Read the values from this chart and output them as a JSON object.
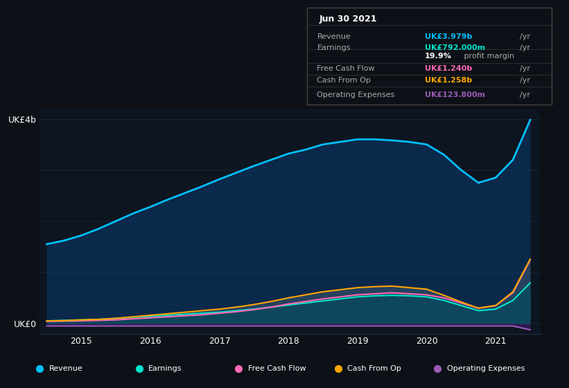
{
  "background_color": "#0d1117",
  "plot_bg_color": "#0d1520",
  "title": "",
  "years": [
    2014.5,
    2014.75,
    2015.0,
    2015.25,
    2015.5,
    2015.75,
    2016.0,
    2016.25,
    2016.5,
    2016.75,
    2017.0,
    2017.25,
    2017.5,
    2017.75,
    2018.0,
    2018.25,
    2018.5,
    2018.75,
    2019.0,
    2019.25,
    2019.5,
    2019.75,
    2020.0,
    2020.25,
    2020.5,
    2020.75,
    2021.0,
    2021.25,
    2021.5
  ],
  "revenue": [
    1.55,
    1.62,
    1.72,
    1.85,
    2.0,
    2.15,
    2.28,
    2.42,
    2.55,
    2.68,
    2.82,
    2.95,
    3.08,
    3.2,
    3.32,
    3.4,
    3.5,
    3.55,
    3.6,
    3.6,
    3.58,
    3.55,
    3.5,
    3.3,
    3.0,
    2.75,
    2.85,
    3.2,
    3.98
  ],
  "earnings": [
    0.05,
    0.06,
    0.07,
    0.08,
    0.1,
    0.12,
    0.14,
    0.16,
    0.18,
    0.2,
    0.22,
    0.25,
    0.28,
    0.32,
    0.36,
    0.4,
    0.44,
    0.48,
    0.52,
    0.54,
    0.55,
    0.54,
    0.52,
    0.45,
    0.35,
    0.25,
    0.28,
    0.45,
    0.792
  ],
  "free_cash_flow": [
    0.04,
    0.045,
    0.05,
    0.06,
    0.07,
    0.09,
    0.11,
    0.13,
    0.15,
    0.17,
    0.2,
    0.23,
    0.27,
    0.32,
    0.38,
    0.43,
    0.48,
    0.52,
    0.56,
    0.58,
    0.6,
    0.58,
    0.56,
    0.5,
    0.4,
    0.3,
    0.35,
    0.6,
    1.24
  ],
  "cash_from_op": [
    0.05,
    0.055,
    0.07,
    0.08,
    0.1,
    0.13,
    0.16,
    0.19,
    0.22,
    0.25,
    0.28,
    0.32,
    0.37,
    0.43,
    0.5,
    0.56,
    0.62,
    0.66,
    0.7,
    0.72,
    0.73,
    0.7,
    0.67,
    0.55,
    0.42,
    0.3,
    0.35,
    0.62,
    1.258
  ],
  "operating_expenses": [
    -0.05,
    -0.05,
    -0.05,
    -0.05,
    -0.05,
    -0.05,
    -0.05,
    -0.05,
    -0.05,
    -0.05,
    -0.05,
    -0.05,
    -0.05,
    -0.05,
    -0.05,
    -0.05,
    -0.05,
    -0.05,
    -0.05,
    -0.05,
    -0.05,
    -0.05,
    -0.05,
    -0.05,
    -0.05,
    -0.05,
    -0.05,
    -0.05,
    -0.1238
  ],
  "revenue_color": "#00bfff",
  "revenue_fill": "#0a3a6e",
  "earnings_color": "#00e5cc",
  "earnings_fill": "#0d5a4a",
  "free_cash_flow_color": "#ff69b4",
  "cash_from_op_color": "#ffa500",
  "operating_expenses_color": "#9b59b6",
  "ylim": [
    -0.2,
    4.2
  ],
  "xlim": [
    2014.4,
    2021.65
  ],
  "yticks": [
    0,
    4.0
  ],
  "ytick_labels": [
    "UK£0",
    "UK£4b"
  ],
  "xtick_positions": [
    2015,
    2016,
    2017,
    2018,
    2019,
    2020,
    2021
  ],
  "xtick_labels": [
    "2015",
    "2016",
    "2017",
    "2018",
    "2019",
    "2020",
    "2021"
  ],
  "grid_color": "#1e2d4a",
  "grid_alpha": 0.6,
  "info_box": {
    "date": "Jun 30 2021",
    "rows": [
      {
        "label": "Revenue",
        "value": "UK£3.979b",
        "unit": "/yr",
        "color": "#00bfff"
      },
      {
        "label": "Earnings",
        "value": "UK£792.000m",
        "unit": "/yr",
        "color": "#00e5cc"
      },
      {
        "label": "",
        "value": "19.9%",
        "unit": " profit margin",
        "color": "#ffffff"
      },
      {
        "label": "Free Cash Flow",
        "value": "UK£1.240b",
        "unit": "/yr",
        "color": "#ff69b4"
      },
      {
        "label": "Cash From Op",
        "value": "UK£1.258b",
        "unit": "/yr",
        "color": "#ffa500"
      },
      {
        "label": "Operating Expenses",
        "value": "UK£123.800m",
        "unit": "/yr",
        "color": "#9b59b6"
      }
    ]
  },
  "legend_items": [
    {
      "label": "Revenue",
      "color": "#00bfff"
    },
    {
      "label": "Earnings",
      "color": "#00e5cc"
    },
    {
      "label": "Free Cash Flow",
      "color": "#ff69b4"
    },
    {
      "label": "Cash From Op",
      "color": "#ffa500"
    },
    {
      "label": "Operating Expenses",
      "color": "#9b59b6"
    }
  ]
}
